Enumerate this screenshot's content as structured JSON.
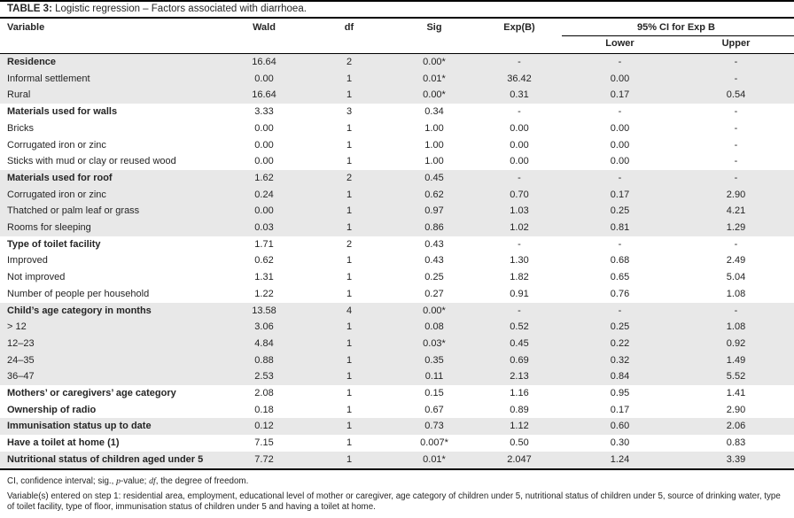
{
  "page": {
    "title_label": "TABLE 3:",
    "title_text": " Logistic regression – Factors associated with diarrhoea."
  },
  "table": {
    "headers": {
      "variable": "Variable",
      "wald": "Wald",
      "df": "df",
      "sig": "Sig",
      "exp_b": "Exp(B)",
      "ci_span": "95% CI for Exp B",
      "lower": "Lower",
      "upper": "Upper"
    },
    "rows": [
      {
        "variable": "Residence",
        "wald": "16.64",
        "df": "2",
        "sig": "0.00*",
        "exp_b": "-",
        "lower": "-",
        "upper": "-",
        "bold": true,
        "shaded": true
      },
      {
        "variable": "Informal settlement",
        "wald": "0.00",
        "df": "1",
        "sig": "0.01*",
        "exp_b": "36.42",
        "lower": "0.00",
        "upper": "-",
        "bold": false,
        "shaded": true
      },
      {
        "variable": "Rural",
        "wald": "16.64",
        "df": "1",
        "sig": "0.00*",
        "exp_b": "0.31",
        "lower": "0.17",
        "upper": "0.54",
        "bold": false,
        "shaded": true
      },
      {
        "variable": "Materials used for walls",
        "wald": "3.33",
        "df": "3",
        "sig": "0.34",
        "exp_b": "-",
        "lower": "-",
        "upper": "-",
        "bold": true,
        "shaded": false
      },
      {
        "variable": "Bricks",
        "wald": "0.00",
        "df": "1",
        "sig": "1.00",
        "exp_b": "0.00",
        "lower": "0.00",
        "upper": "-",
        "bold": false,
        "shaded": false
      },
      {
        "variable": "Corrugated iron or zinc",
        "wald": "0.00",
        "df": "1",
        "sig": "1.00",
        "exp_b": "0.00",
        "lower": "0.00",
        "upper": "-",
        "bold": false,
        "shaded": false
      },
      {
        "variable": "Sticks with mud or clay or reused wood",
        "wald": "0.00",
        "df": "1",
        "sig": "1.00",
        "exp_b": "0.00",
        "lower": "0.00",
        "upper": "-",
        "bold": false,
        "shaded": false
      },
      {
        "variable": "Materials used for roof",
        "wald": "1.62",
        "df": "2",
        "sig": "0.45",
        "exp_b": "-",
        "lower": "-",
        "upper": "-",
        "bold": true,
        "shaded": true
      },
      {
        "variable": "Corrugated iron or zinc",
        "wald": "0.24",
        "df": "1",
        "sig": "0.62",
        "exp_b": "0.70",
        "lower": "0.17",
        "upper": "2.90",
        "bold": false,
        "shaded": true
      },
      {
        "variable": "Thatched or palm leaf or grass",
        "wald": "0.00",
        "df": "1",
        "sig": "0.97",
        "exp_b": "1.03",
        "lower": "0.25",
        "upper": "4.21",
        "bold": false,
        "shaded": true
      },
      {
        "variable": "Rooms for sleeping",
        "wald": "0.03",
        "df": "1",
        "sig": "0.86",
        "exp_b": "1.02",
        "lower": "0.81",
        "upper": "1.29",
        "bold": false,
        "shaded": true
      },
      {
        "variable": "Type of toilet facility",
        "wald": "1.71",
        "df": "2",
        "sig": "0.43",
        "exp_b": "-",
        "lower": "-",
        "upper": "-",
        "bold": true,
        "shaded": false
      },
      {
        "variable": "Improved",
        "wald": "0.62",
        "df": "1",
        "sig": "0.43",
        "exp_b": "1.30",
        "lower": "0.68",
        "upper": "2.49",
        "bold": false,
        "shaded": false
      },
      {
        "variable": "Not improved",
        "wald": "1.31",
        "df": "1",
        "sig": "0.25",
        "exp_b": "1.82",
        "lower": "0.65",
        "upper": "5.04",
        "bold": false,
        "shaded": false
      },
      {
        "variable": "Number of people per household",
        "wald": "1.22",
        "df": "1",
        "sig": "0.27",
        "exp_b": "0.91",
        "lower": "0.76",
        "upper": "1.08",
        "bold": false,
        "shaded": false
      },
      {
        "variable": "Child’s age category in months",
        "wald": "13.58",
        "df": "4",
        "sig": "0.00*",
        "exp_b": "-",
        "lower": "-",
        "upper": "-",
        "bold": true,
        "shaded": true
      },
      {
        "variable": "> 12",
        "wald": "3.06",
        "df": "1",
        "sig": "0.08",
        "exp_b": "0.52",
        "lower": "0.25",
        "upper": "1.08",
        "bold": false,
        "shaded": true
      },
      {
        "variable": "12–23",
        "wald": "4.84",
        "df": "1",
        "sig": "0.03*",
        "exp_b": "0.45",
        "lower": "0.22",
        "upper": "0.92",
        "bold": false,
        "shaded": true
      },
      {
        "variable": "24–35",
        "wald": "0.88",
        "df": "1",
        "sig": "0.35",
        "exp_b": "0.69",
        "lower": "0.32",
        "upper": "1.49",
        "bold": false,
        "shaded": true
      },
      {
        "variable": "36–47",
        "wald": "2.53",
        "df": "1",
        "sig": "0.11",
        "exp_b": "2.13",
        "lower": "0.84",
        "upper": "5.52",
        "bold": false,
        "shaded": true
      },
      {
        "variable": "Mothers’ or caregivers’ age category",
        "wald": "2.08",
        "df": "1",
        "sig": "0.15",
        "exp_b": "1.16",
        "lower": "0.95",
        "upper": "1.41",
        "bold": true,
        "shaded": false
      },
      {
        "variable": "Ownership of radio",
        "wald": "0.18",
        "df": "1",
        "sig": "0.67",
        "exp_b": "0.89",
        "lower": "0.17",
        "upper": "2.90",
        "bold": true,
        "shaded": false
      },
      {
        "variable": "Immunisation status up to date",
        "wald": "0.12",
        "df": "1",
        "sig": "0.73",
        "exp_b": "1.12",
        "lower": "0.60",
        "upper": "2.06",
        "bold": true,
        "shaded": true
      },
      {
        "variable": "Have a toilet at home (1)",
        "wald": "7.15",
        "df": "1",
        "sig": "0.007*",
        "exp_b": "0.50",
        "lower": "0.30",
        "upper": "0.83",
        "bold": true,
        "shaded": false
      },
      {
        "variable": "Nutritional status of children aged under 5",
        "wald": "7.72",
        "df": "1",
        "sig": "0.01*",
        "exp_b": "2.047",
        "lower": "1.24",
        "upper": "3.39",
        "bold": true,
        "shaded": true
      }
    ]
  },
  "footnotes": {
    "line1_part1": "CI, confidence interval; sig., ",
    "line1_italic1": "p",
    "line1_part2": "-value; ",
    "line1_italic2": "df",
    "line1_part3": ", the degree of freedom.",
    "line2": "Variable(s) entered on step 1: residential area, employment, educational level of mother or caregiver, age category of children under 5, nutritional status of children under 5, source of drinking water, type of toilet facility, type of floor, immunisation status of children under 5 and having a toilet at home."
  },
  "colors": {
    "row_shade": "#e8e8e8",
    "border": "#000000",
    "text": "#252525"
  }
}
